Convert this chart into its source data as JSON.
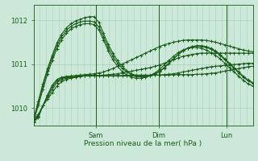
{
  "background_color": "#cce8d8",
  "plot_bg_color": "#cce8d8",
  "grid_color": "#aacfbc",
  "line_color": "#1a5c1a",
  "marker_color": "#1a5c1a",
  "xlabel": "Pression niveau de la mer( hPa )",
  "xlabels": [
    "Sam",
    "Dim",
    "Lun"
  ],
  "yticks": [
    1010,
    1011,
    1012
  ],
  "ylim": [
    1009.6,
    1012.35
  ],
  "num_points": 48,
  "series": [
    [
      1009.75,
      1009.85,
      1010.05,
      1010.2,
      1010.35,
      1010.5,
      1010.6,
      1010.65,
      1010.68,
      1010.7,
      1010.72,
      1010.73,
      1010.74,
      1010.74,
      1010.74,
      1010.74,
      1010.74,
      1010.74,
      1010.74,
      1010.74,
      1010.75,
      1010.75,
      1010.75,
      1010.75,
      1010.75,
      1010.75,
      1010.75,
      1010.75,
      1010.75,
      1010.75,
      1010.76,
      1010.76,
      1010.76,
      1010.76,
      1010.76,
      1010.77,
      1010.77,
      1010.78,
      1010.79,
      1010.8,
      1010.82,
      1010.84,
      1010.86,
      1010.88,
      1010.9,
      1010.92,
      1010.94,
      1010.95
    ],
    [
      1009.72,
      1009.82,
      1010.05,
      1010.25,
      1010.42,
      1010.58,
      1010.65,
      1010.68,
      1010.7,
      1010.71,
      1010.72,
      1010.73,
      1010.73,
      1010.73,
      1010.73,
      1010.73,
      1010.73,
      1010.73,
      1010.73,
      1010.73,
      1010.73,
      1010.73,
      1010.73,
      1010.74,
      1010.74,
      1010.74,
      1010.75,
      1010.75,
      1010.76,
      1010.77,
      1010.78,
      1010.8,
      1010.82,
      1010.84,
      1010.86,
      1010.88,
      1010.9,
      1010.92,
      1010.94,
      1010.95,
      1010.96,
      1010.97,
      1010.98,
      1010.99,
      1011.0,
      1011.01,
      1011.02,
      1011.02
    ],
    [
      1009.7,
      1009.8,
      1010.05,
      1010.28,
      1010.48,
      1010.62,
      1010.68,
      1010.7,
      1010.71,
      1010.72,
      1010.73,
      1010.74,
      1010.74,
      1010.74,
      1010.74,
      1010.75,
      1010.76,
      1010.77,
      1010.78,
      1010.8,
      1010.82,
      1010.84,
      1010.86,
      1010.88,
      1010.9,
      1010.92,
      1010.95,
      1010.98,
      1011.02,
      1011.06,
      1011.1,
      1011.14,
      1011.18,
      1011.2,
      1011.22,
      1011.24,
      1011.25,
      1011.25,
      1011.25,
      1011.25,
      1011.25,
      1011.25,
      1011.25,
      1011.25,
      1011.25,
      1011.25,
      1011.25,
      1011.25
    ],
    [
      1009.68,
      1009.78,
      1010.05,
      1010.3,
      1010.52,
      1010.65,
      1010.7,
      1010.72,
      1010.73,
      1010.74,
      1010.75,
      1010.76,
      1010.77,
      1010.78,
      1010.8,
      1010.82,
      1010.86,
      1010.9,
      1010.95,
      1011.0,
      1011.05,
      1011.1,
      1011.15,
      1011.2,
      1011.25,
      1011.3,
      1011.35,
      1011.4,
      1011.44,
      1011.47,
      1011.5,
      1011.52,
      1011.54,
      1011.55,
      1011.55,
      1011.55,
      1011.55,
      1011.54,
      1011.52,
      1011.5,
      1011.47,
      1011.44,
      1011.41,
      1011.38,
      1011.35,
      1011.32,
      1011.3,
      1011.28
    ],
    [
      1009.75,
      1010.15,
      1010.55,
      1010.9,
      1011.2,
      1011.48,
      1011.68,
      1011.82,
      1011.92,
      1011.98,
      1012.02,
      1012.06,
      1012.08,
      1012.08,
      1011.95,
      1011.7,
      1011.45,
      1011.25,
      1011.08,
      1010.95,
      1010.85,
      1010.78,
      1010.74,
      1010.72,
      1010.72,
      1010.74,
      1010.78,
      1010.84,
      1010.92,
      1011.02,
      1011.12,
      1011.22,
      1011.3,
      1011.36,
      1011.4,
      1011.42,
      1011.42,
      1011.4,
      1011.36,
      1011.3,
      1011.22,
      1011.12,
      1011.02,
      1010.92,
      1010.82,
      1010.72,
      1010.64,
      1010.58
    ],
    [
      1009.72,
      1010.1,
      1010.5,
      1010.85,
      1011.15,
      1011.42,
      1011.62,
      1011.76,
      1011.86,
      1011.92,
      1011.96,
      1011.98,
      1011.98,
      1011.96,
      1011.85,
      1011.62,
      1011.38,
      1011.18,
      1011.02,
      1010.9,
      1010.82,
      1010.76,
      1010.72,
      1010.71,
      1010.71,
      1010.73,
      1010.77,
      1010.83,
      1010.91,
      1011.01,
      1011.12,
      1011.22,
      1011.3,
      1011.36,
      1011.4,
      1011.41,
      1011.4,
      1011.38,
      1011.34,
      1011.28,
      1011.2,
      1011.1,
      1011.0,
      1010.9,
      1010.8,
      1010.7,
      1010.62,
      1010.56
    ],
    [
      1009.7,
      1010.05,
      1010.42,
      1010.78,
      1011.08,
      1011.35,
      1011.55,
      1011.7,
      1011.8,
      1011.86,
      1011.9,
      1011.92,
      1011.92,
      1011.9,
      1011.78,
      1011.55,
      1011.3,
      1011.1,
      1010.95,
      1010.83,
      1010.75,
      1010.7,
      1010.68,
      1010.68,
      1010.7,
      1010.74,
      1010.8,
      1010.88,
      1010.98,
      1011.08,
      1011.18,
      1011.26,
      1011.32,
      1011.36,
      1011.38,
      1011.38,
      1011.36,
      1011.32,
      1011.26,
      1011.2,
      1011.12,
      1011.02,
      1010.92,
      1010.82,
      1010.72,
      1010.63,
      1010.55,
      1010.5
    ]
  ]
}
